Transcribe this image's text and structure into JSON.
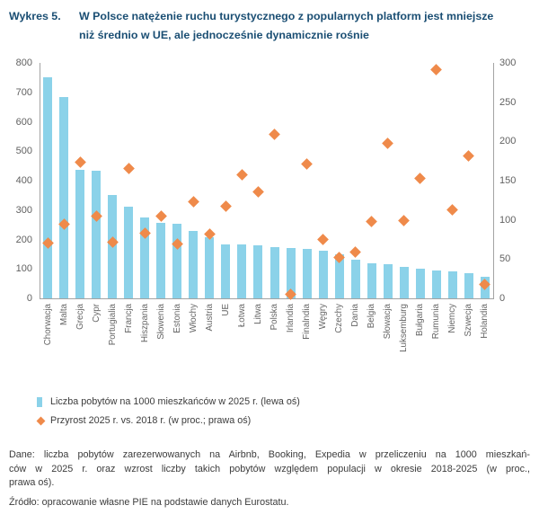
{
  "header": {
    "figure_label": "Wykres 5.",
    "title_lines": [
      "W Polsce natężenie ruchu turystycznego z popularnych platform jest mniejsze",
      "niż średnio w UE, ale jednocześnie dynamicznie rośnie"
    ]
  },
  "legend": {
    "items": [
      {
        "label": "Liczba pobytów na 1000 mieszkańców w 2025 r. (lewa oś)",
        "marker": "bar-square",
        "color": "#8BD2E9"
      },
      {
        "label": "Przyrost 2025 r. vs. 2018 r. (w proc.; prawa oś)",
        "marker": "diamond",
        "color": "#EF8A4A"
      }
    ]
  },
  "footer": {
    "dane_lines": [
      "Dane: liczba pobytów zarezerwowanych na Airbnb, Booking, Expedia w przeliczeniu na 1000 mieszkań-",
      "ców w 2025 r. oraz wzrost liczby takich pobytów względem populacji w okresie 2018-2025 (w proc.,",
      "prawa oś)."
    ],
    "zrodlo": "Źródło: opracowanie własne PIE na podstawie danych Eurostatu."
  },
  "colors": {
    "title": "#1A4E73",
    "bar": "#8BD2E9",
    "diamond": "#EF8A4A",
    "axis": "#a3a3a3",
    "tick_text": "#616161",
    "body_text": "#3C3C3C"
  },
  "chart_data": {
    "type": "bar",
    "title": "W Polsce natężenie ruchu turystycznego z popularnych platform jest mniejsze niż średnio w UE, ale jednocześnie dynamicznie rośnie",
    "categories": [
      "Chorwacja",
      "Malta",
      "Grecja",
      "Cypr",
      "Portugialia",
      "Francja",
      "Hiszpania",
      "Słowenia",
      "Estonia",
      "Włochy",
      "Austria",
      "UE",
      "Łotwa",
      "Litwa",
      "Polska",
      "Irlandia",
      "Finalndia",
      "Węgry",
      "Czechy",
      "Dania",
      "Belgia",
      "Słowacja",
      "Luksemburg",
      "Bułgaria",
      "Rumunia",
      "Niemcy",
      "Szwecja",
      "Holandia"
    ],
    "series": [
      {
        "name": "Liczba pobytów na 1000 mieszkańców w 2025 r. (lewa oś)",
        "render": "bar",
        "axis": "left",
        "color": "#8BD2E9",
        "values": [
          750,
          685,
          436,
          434,
          350,
          310,
          275,
          257,
          252,
          228,
          207,
          183,
          182,
          181,
          174,
          172,
          167,
          161,
          149,
          130,
          118,
          115,
          106,
          100,
          95,
          93,
          84,
          72
        ]
      },
      {
        "name": "Przyrost 2025 r. vs. 2018 r. (w proc.; prawa oś)",
        "render": "scatter-diamond",
        "axis": "right",
        "color": "#EF8A4A",
        "values": [
          70,
          95,
          174,
          105,
          71,
          165,
          83,
          105,
          69,
          123,
          82,
          117,
          157,
          136,
          209,
          5,
          171,
          75,
          52,
          59,
          98,
          197,
          99,
          153,
          291,
          113,
          181,
          18
        ]
      }
    ],
    "left_axis": {
      "min": 0,
      "max": 800,
      "step": 100
    },
    "right_axis": {
      "min": 0,
      "max": 300,
      "step": 50
    },
    "grid": false,
    "legend_position": "bottom-left"
  }
}
